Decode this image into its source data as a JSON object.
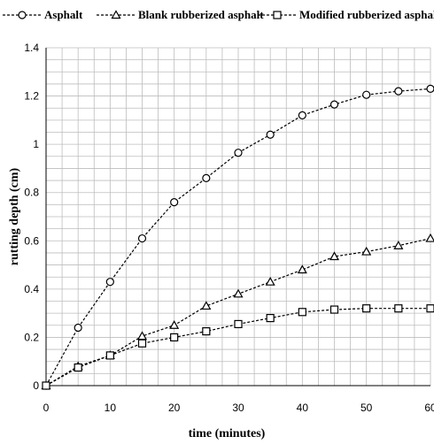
{
  "chart_data": {
    "type": "line",
    "title": "",
    "xlabel": "time (minutes)",
    "ylabel": "rutting depth (cm)",
    "xlim": [
      0,
      60
    ],
    "ylim": [
      0,
      1.4
    ],
    "x_ticks": [
      "0",
      "10",
      "20",
      "30",
      "40",
      "50",
      "60"
    ],
    "y_ticks": [
      "0",
      "0.2",
      "0.4",
      "0.6",
      "0.8",
      "1",
      "1.2",
      "1.4"
    ],
    "grid": true,
    "legend_position": "top",
    "x": [
      0,
      5,
      10,
      15,
      20,
      25,
      30,
      35,
      40,
      45,
      50,
      55,
      60
    ],
    "series": [
      {
        "name": "Asphalt",
        "marker": "circle",
        "values": [
          0,
          0.24,
          0.43,
          0.61,
          0.76,
          0.86,
          0.965,
          1.04,
          1.12,
          1.165,
          1.205,
          1.22,
          1.23
        ]
      },
      {
        "name": "Blank rubberized asphalt",
        "marker": "triangle",
        "values": [
          0,
          0.08,
          0.125,
          0.205,
          0.25,
          0.33,
          0.38,
          0.43,
          0.48,
          0.535,
          0.555,
          0.58,
          0.61
        ]
      },
      {
        "name": "Modified rubberized asphalt",
        "marker": "square",
        "values": [
          0,
          0.075,
          0.125,
          0.175,
          0.2,
          0.225,
          0.255,
          0.28,
          0.305,
          0.315,
          0.32,
          0.32,
          0.32
        ]
      }
    ]
  }
}
